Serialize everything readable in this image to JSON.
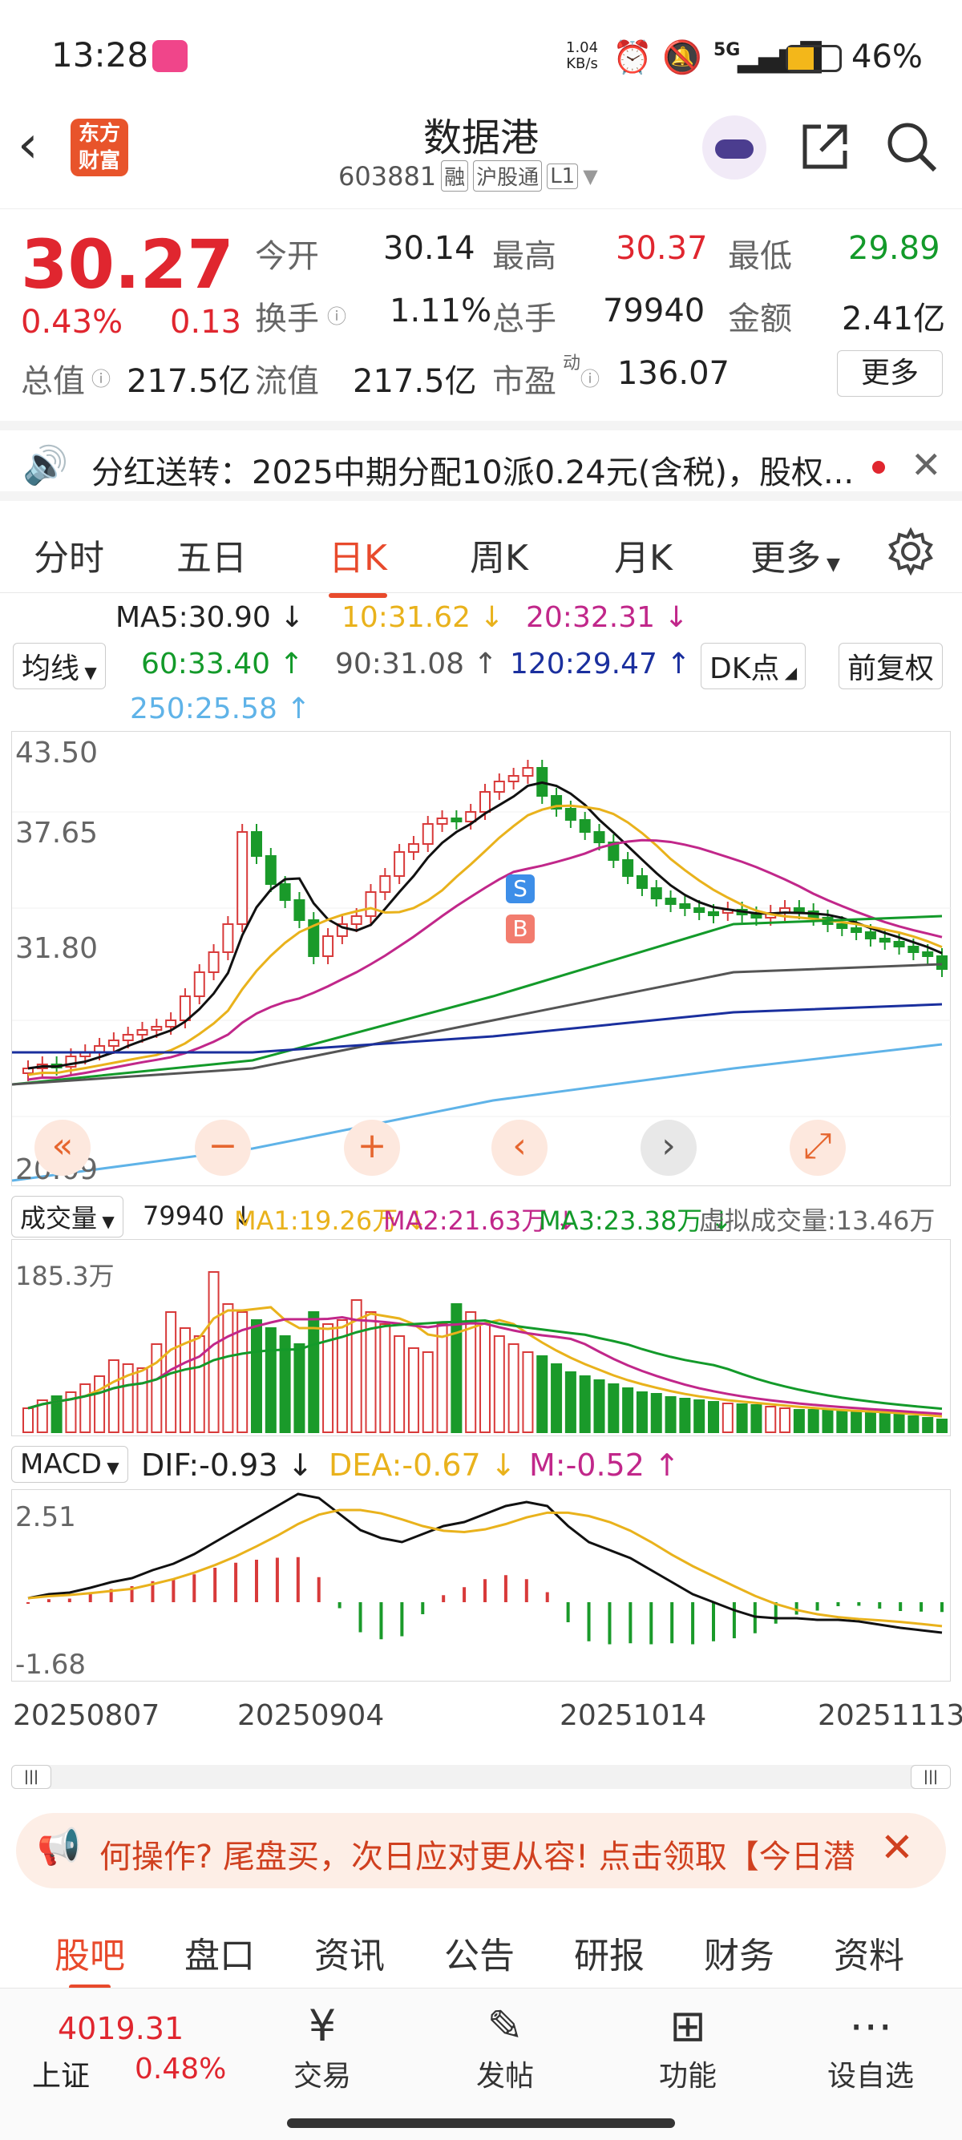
{
  "status": {
    "time": "13:28",
    "net_speed_top": "1.04",
    "net_speed_bottom": "KB/s",
    "signal": "5G",
    "battery": "46%"
  },
  "header": {
    "logo_line1": "东方",
    "logo_line2": "财富",
    "title": "数据港",
    "code": "603881",
    "tag_rong": "融",
    "tag_hgt": "沪股通",
    "tag_l1": "L1"
  },
  "quote": {
    "price": "30.27",
    "change_pct": "0.43%",
    "change_amt": "0.13",
    "open_label": "今开",
    "open": "30.14",
    "high_label": "最高",
    "high": "30.37",
    "low_label": "最低",
    "low": "29.89",
    "turnover_label": "换手",
    "turnover": "1.11%",
    "volume_label": "总手",
    "volume": "79940",
    "amount_label": "金额",
    "amount": "2.41亿",
    "mktcap_label": "总值",
    "mktcap": "217.5亿",
    "float_label": "流值",
    "float": "217.5亿",
    "pe_label": "市盈",
    "pe_sup": "动",
    "pe": "136.07",
    "more": "更多"
  },
  "notice": {
    "text": "分红送转：2025中期分配10派0.24元(含税)，股权..."
  },
  "tabs": [
    "分时",
    "五日",
    "日K",
    "周K",
    "月K",
    "更多"
  ],
  "ma": {
    "select": "均线",
    "ma5": "MA5:30.90",
    "ma10": "10:31.62",
    "ma20": "20:32.31",
    "ma60": "60:33.40",
    "ma90": "90:31.08",
    "ma120": "120:29.47",
    "ma250": "250:25.58",
    "dk": "DK点",
    "fq": "前复权"
  },
  "kchart": {
    "y_top": "43.50",
    "y_2": "37.65",
    "y_3": "31.80",
    "y_bottom": "20.09",
    "sell": "S",
    "buy": "B"
  },
  "vol": {
    "select": "成交量",
    "value": "79940",
    "ma1": "MA1:19.26万",
    "ma2": "MA2:21.63万",
    "ma3": "MA3:23.38万",
    "virtual": "虚拟成交量:13.46万",
    "y_top": "185.3万"
  },
  "macd": {
    "select": "MACD",
    "dif": "DIF:-0.93",
    "dea": "DEA:-0.67",
    "m": "M:-0.52",
    "y_top": "2.51",
    "y_bottom": "-1.68"
  },
  "dates": [
    "20250807",
    "20250904",
    "20251014",
    "20251113"
  ],
  "promo": {
    "text": "何操作? 尾盘买，次日应对更从容! 点击领取【今日潜"
  },
  "subtabs": [
    "股吧",
    "盘口",
    "资讯",
    "公告",
    "研报",
    "财务",
    "资料"
  ],
  "bottom": {
    "index_value": "4019.31",
    "index_name": "上证",
    "index_change": "0.48%",
    "trade": "交易",
    "post": "发帖",
    "func": "功能",
    "fav": "设自选"
  },
  "colors": {
    "up": "#e0262f",
    "down": "#139a2a",
    "accent": "#e84a2c"
  }
}
